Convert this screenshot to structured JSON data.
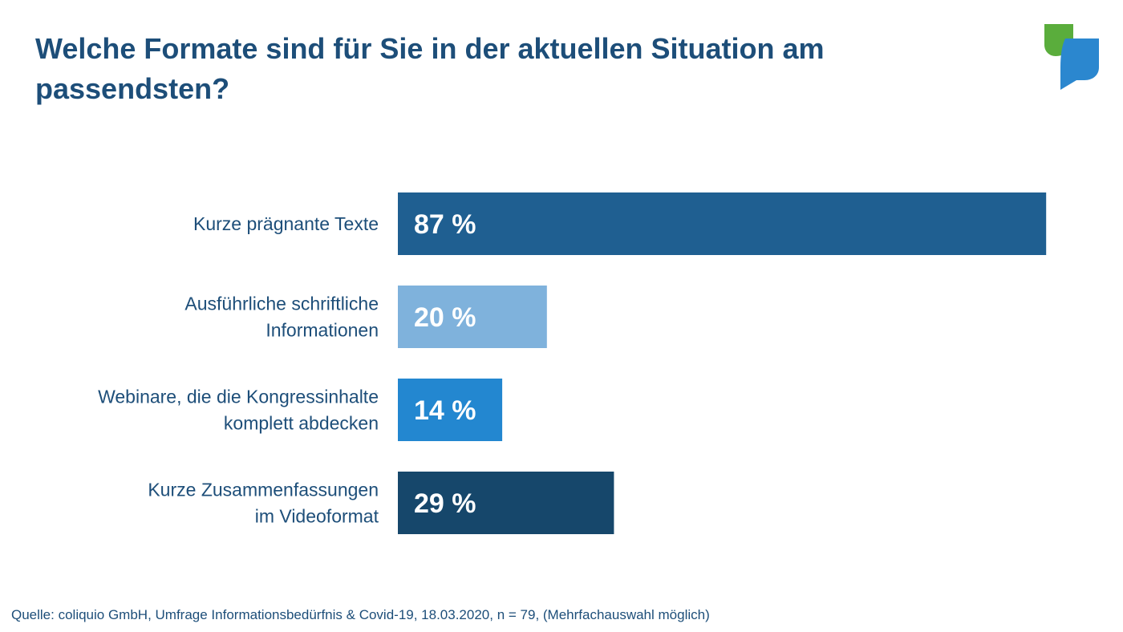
{
  "title": "Welche Formate sind für Sie in der aktuellen Situation am passendsten?",
  "source": "Quelle: coliquio GmbH, Umfrage Informationsbedürfnis & Covid-19, 18.03.2020, n = 79, (Mehrfachauswahl möglich)",
  "logo": {
    "icon": "speech-bubbles-logo-icon",
    "colors": [
      "#5aad3c",
      "#2b87cf"
    ]
  },
  "colors": {
    "title": "#1d4e79",
    "text": "#1d4e79",
    "value_text": "#ffffff"
  },
  "chart_data": {
    "type": "bar",
    "orientation": "horizontal",
    "unit": "%",
    "xlim": [
      0,
      100
    ],
    "grid": false,
    "categories": [
      [
        "Kurze prägnante Texte"
      ],
      [
        "Ausführliche schriftliche",
        "Informationen"
      ],
      [
        "Webinare, die die Kongressinhalte",
        "komplett abdecken"
      ],
      [
        "Kurze Zusammenfassungen",
        "im Videoformat"
      ]
    ],
    "values": [
      87,
      20,
      14,
      29
    ],
    "value_labels": [
      "87 %",
      "20 %",
      "14 %",
      "29 %"
    ],
    "bar_colors": [
      "#1f5f91",
      "#7fb2dc",
      "#2387d0",
      "#16476b"
    ]
  }
}
